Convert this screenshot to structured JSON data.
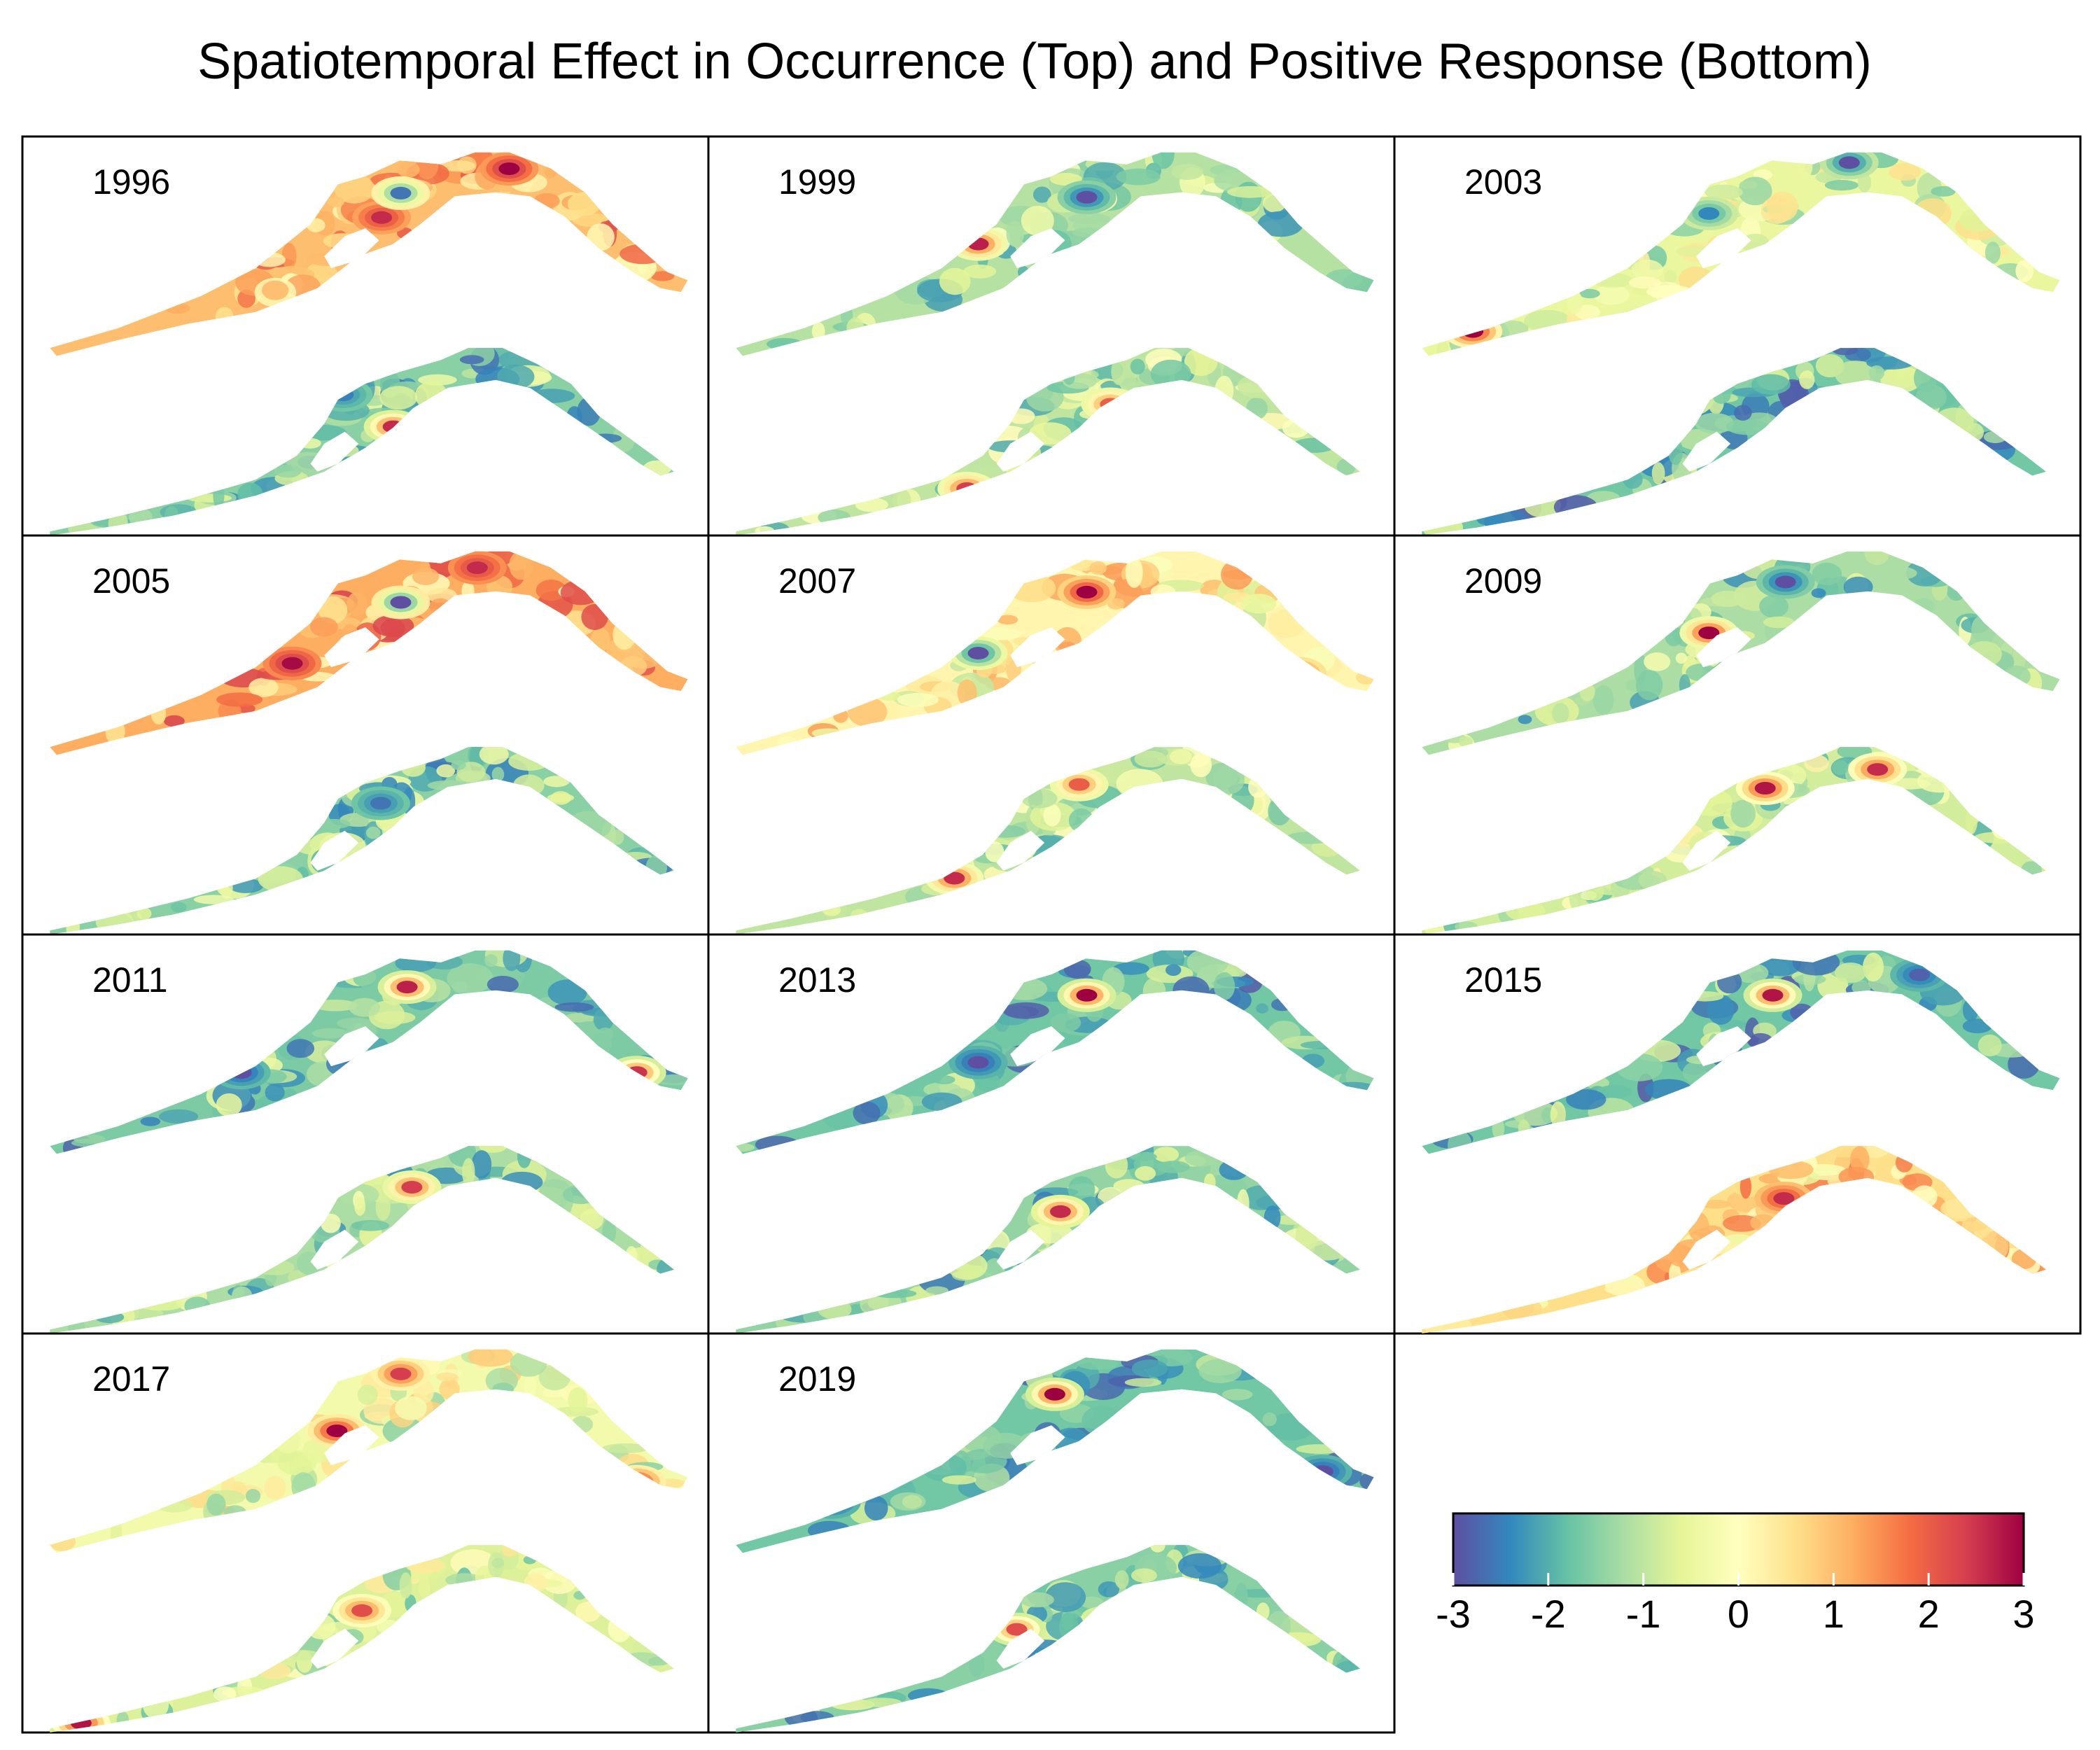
{
  "chart_data": {
    "type": "heatmap",
    "title": "Spatiotemporal Effect in Occurrence (Top) and Positive Response (Bottom)",
    "panels": [
      {
        "year": "1996",
        "top_bias": 1.0,
        "bottom_bias": -1.5,
        "top_hot": [
          [
            0.72,
            0.08,
            3.0
          ],
          [
            0.52,
            0.32,
            2.6
          ],
          [
            0.55,
            0.2,
            -2.6
          ]
        ],
        "bottom_hot": [
          [
            0.55,
            0.42,
            2.6
          ],
          [
            0.47,
            0.25,
            -2.5
          ]
        ]
      },
      {
        "year": "1999",
        "top_bias": -1.1,
        "bottom_bias": -1.0,
        "top_hot": [
          [
            0.38,
            0.45,
            2.7
          ],
          [
            0.55,
            0.22,
            -3.0
          ]
        ],
        "bottom_hot": [
          [
            0.6,
            0.3,
            2.0
          ],
          [
            0.37,
            0.75,
            2.4
          ]
        ]
      },
      {
        "year": "2003",
        "top_bias": -0.5,
        "bottom_bias": -1.7,
        "top_hot": [
          [
            0.08,
            0.88,
            3.0
          ],
          [
            0.67,
            0.05,
            -3.0
          ],
          [
            0.45,
            0.3,
            -2.4
          ]
        ],
        "bottom_hot": [
          [
            0.42,
            0.28,
            2.4
          ]
        ]
      },
      {
        "year": "2005",
        "top_bias": 1.2,
        "bottom_bias": -1.5,
        "top_hot": [
          [
            0.38,
            0.55,
            2.9
          ],
          [
            0.67,
            0.08,
            2.6
          ],
          [
            0.55,
            0.25,
            -3.0
          ]
        ],
        "bottom_hot": [
          [
            0.53,
            0.3,
            -2.6
          ]
        ]
      },
      {
        "year": "2007",
        "top_bias": 0.2,
        "bottom_bias": -1.0,
        "top_hot": [
          [
            0.55,
            0.2,
            3.0
          ],
          [
            0.88,
            0.6,
            1.9
          ],
          [
            0.38,
            0.5,
            -3.0
          ]
        ],
        "bottom_hot": [
          [
            0.35,
            0.7,
            2.6
          ],
          [
            0.55,
            0.2,
            2.0
          ]
        ]
      },
      {
        "year": "2009",
        "top_bias": -1.2,
        "bottom_bias": -0.8,
        "top_hot": [
          [
            0.45,
            0.4,
            3.0
          ],
          [
            0.57,
            0.15,
            -3.0
          ]
        ],
        "bottom_hot": [
          [
            0.55,
            0.22,
            2.8
          ],
          [
            0.73,
            0.12,
            2.6
          ]
        ]
      },
      {
        "year": "2011",
        "top_bias": -1.6,
        "bottom_bias": -1.2,
        "top_hot": [
          [
            0.56,
            0.18,
            2.7
          ],
          [
            0.92,
            0.6,
            2.5
          ],
          [
            0.3,
            0.6,
            -3.0
          ]
        ],
        "bottom_hot": [
          [
            0.58,
            0.22,
            2.4
          ]
        ]
      },
      {
        "year": "2013",
        "top_bias": -1.7,
        "bottom_bias": -1.4,
        "top_hot": [
          [
            0.55,
            0.22,
            3.0
          ],
          [
            0.12,
            0.75,
            -3.0
          ],
          [
            0.38,
            0.55,
            -3.0
          ]
        ],
        "bottom_hot": [
          [
            0.52,
            0.35,
            2.6
          ]
        ]
      },
      {
        "year": "2015",
        "top_bias": -1.7,
        "bottom_bias": 0.6,
        "top_hot": [
          [
            0.55,
            0.22,
            2.8
          ],
          [
            0.78,
            0.12,
            -2.8
          ]
        ],
        "bottom_hot": [
          [
            0.58,
            0.28,
            2.6
          ]
        ]
      },
      {
        "year": "2017",
        "top_bias": -0.3,
        "bottom_bias": -0.7,
        "top_hot": [
          [
            0.45,
            0.4,
            3.0
          ],
          [
            0.92,
            0.65,
            2.7
          ],
          [
            0.55,
            0.12,
            2.4
          ]
        ],
        "bottom_hot": [
          [
            0.05,
            0.95,
            2.8
          ],
          [
            0.5,
            0.35,
            2.2
          ]
        ]
      },
      {
        "year": "2019",
        "top_bias": -1.7,
        "bottom_bias": -1.5,
        "top_hot": [
          [
            0.5,
            0.22,
            3.0
          ],
          [
            0.15,
            0.75,
            -3.0
          ],
          [
            0.92,
            0.6,
            -3.0
          ]
        ],
        "bottom_hot": [
          [
            0.45,
            0.45,
            2.2
          ]
        ]
      }
    ],
    "colorbar": {
      "scale": "Spectral (reversed)",
      "min": -3,
      "max": 3,
      "tick_labels": [
        "-3",
        "-2",
        "-1",
        "0",
        "1",
        "2",
        "3"
      ],
      "colors": [
        "#5e4fa2",
        "#3288bd",
        "#66c2a5",
        "#abdda4",
        "#e6f598",
        "#ffffbf",
        "#fee08b",
        "#fdae61",
        "#f46d43",
        "#d53e4f",
        "#9e0142"
      ]
    }
  }
}
